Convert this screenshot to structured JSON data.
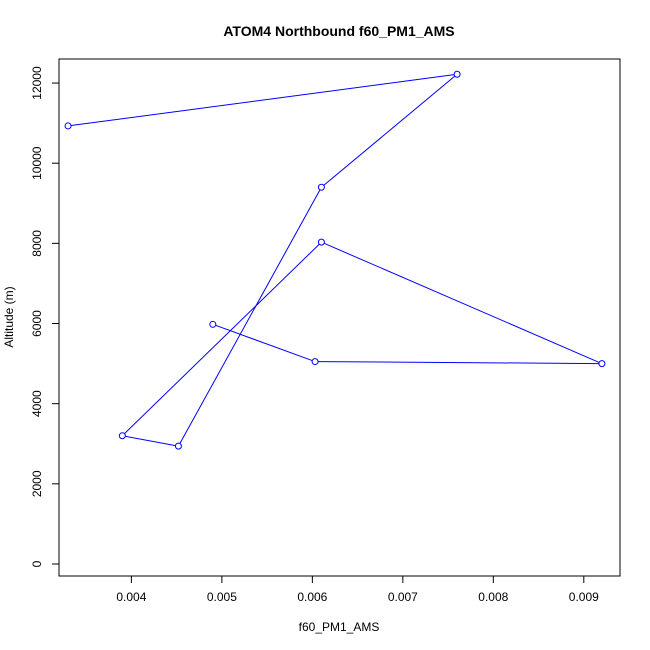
{
  "chart_data": {
    "type": "line",
    "title": "ATOM4 Northbound f60_PM1_AMS",
    "xlabel": "f60_PM1_AMS",
    "ylabel": "Altitude (m)",
    "xlim": [
      0.0032,
      0.0094
    ],
    "ylim": [
      -300,
      12600
    ],
    "grid": false,
    "xticks": [
      0.004,
      0.005,
      0.006,
      0.007,
      0.008,
      0.009
    ],
    "xtick_labels": [
      "0.004",
      "0.005",
      "0.006",
      "0.007",
      "0.008",
      "0.009"
    ],
    "yticks": [
      0,
      2000,
      4000,
      6000,
      8000,
      10000,
      12000
    ],
    "ytick_labels": [
      "0",
      "2000",
      "4000",
      "6000",
      "8000",
      "10000",
      "12000"
    ],
    "series": [
      {
        "x": [
          0.0049,
          0.00603,
          0.0092,
          0.0061,
          0.0039,
          0.00452,
          0.0061,
          0.0076,
          0.0033
        ],
        "y": [
          5980,
          5050,
          5000,
          8030,
          3200,
          2940,
          9400,
          12220,
          10930
        ],
        "color": "#0000ff",
        "marker": "open-circle"
      }
    ]
  }
}
